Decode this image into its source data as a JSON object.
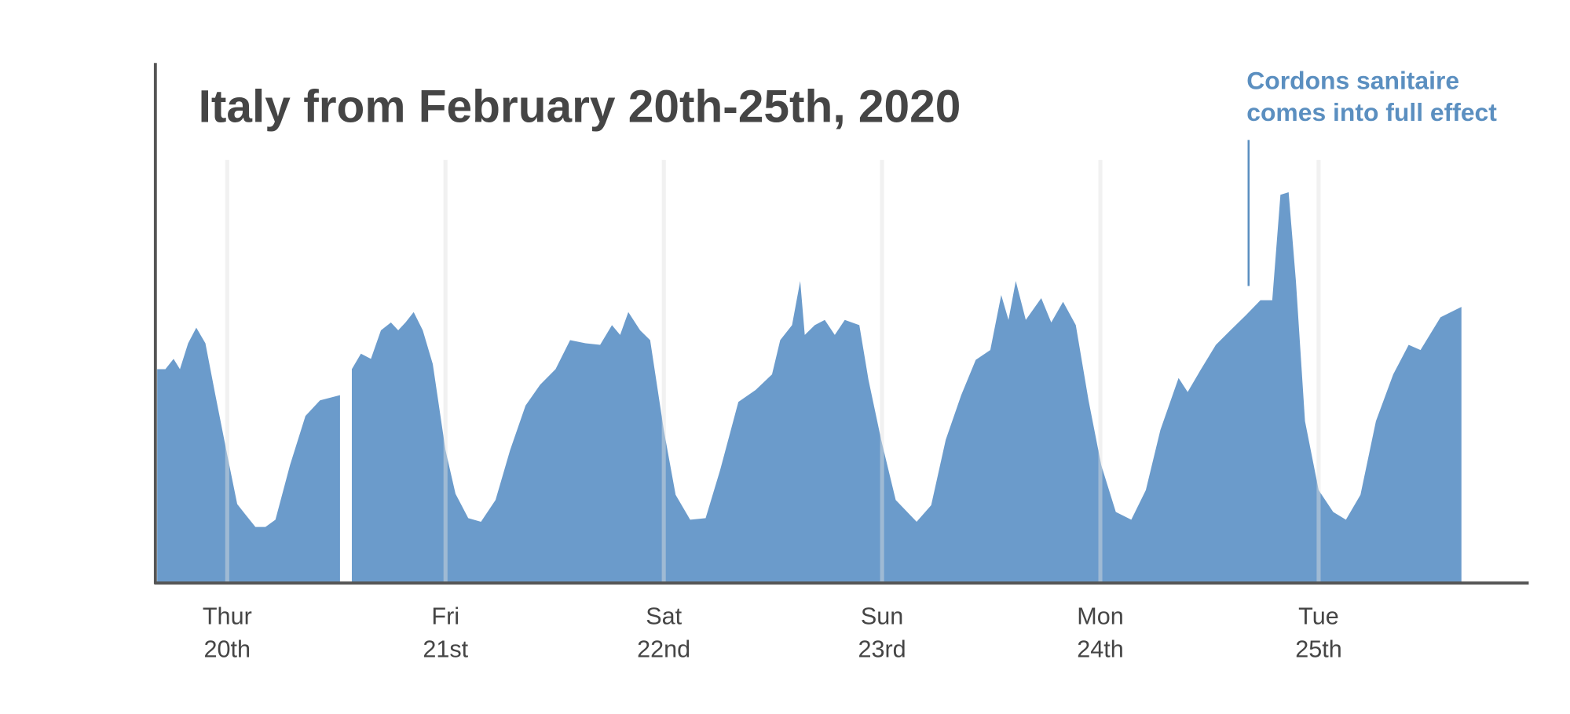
{
  "chart_data": {
    "type": "area",
    "title": "Italy from February 20th-25th, 2020",
    "color": "#6b9bcb",
    "grid": true,
    "xlim": [
      -7.9,
      143.1
    ],
    "ylim": [
      0,
      100
    ],
    "xticks": [
      {
        "value": 0,
        "label": [
          "Thur",
          "20th"
        ]
      },
      {
        "value": 24,
        "label": [
          "Fri",
          "21st"
        ]
      },
      {
        "value": 48,
        "label": [
          "Sat",
          "22nd"
        ]
      },
      {
        "value": 72,
        "label": [
          "Sun",
          "23rd"
        ]
      },
      {
        "value": 96,
        "label": [
          "Mon",
          "24th"
        ]
      },
      {
        "value": 120,
        "label": [
          "Tue",
          "25th"
        ]
      }
    ],
    "x": [
      -7.7,
      -6.8,
      -5.9,
      -5.2,
      -4.3,
      -3.4,
      -2.4,
      -1.3,
      0,
      1.1,
      2.0,
      3.1,
      4.2,
      5.3,
      6.9,
      8.6,
      10.2,
      12.4,
      13.0,
      13.7,
      14.7,
      15.8,
      16.9,
      18.0,
      18.8,
      19.6,
      20.5,
      21.5,
      22.6,
      24.0,
      25.1,
      26.5,
      27.9,
      29.5,
      31.1,
      32.8,
      34.4,
      36.1,
      37.7,
      39.4,
      41.0,
      42.3,
      43.2,
      44.1,
      45.4,
      46.5,
      48.0,
      49.3,
      50.9,
      52.6,
      54.2,
      56.2,
      58.1,
      59.9,
      60.8,
      62.1,
      63.0,
      63.5,
      64.6,
      65.7,
      66.8,
      67.9,
      69.5,
      70.5,
      71.9,
      73.5,
      75.8,
      77.4,
      79.0,
      80.7,
      82.3,
      83.9,
      85.1,
      85.9,
      86.7,
      87.8,
      89.5,
      90.6,
      91.9,
      93.3,
      94.7,
      96.1,
      97.7,
      99.4,
      101.0,
      102.6,
      104.6,
      105.6,
      107.0,
      108.7,
      110.3,
      112.0,
      113.6,
      114.9,
      115.8,
      116.7,
      117.5,
      118.5,
      120.0,
      121.6,
      123.0,
      124.6,
      126.3,
      128.2,
      129.9,
      131.2,
      133.4,
      135.7
    ],
    "values": [
      41,
      41,
      43,
      41,
      46,
      49,
      46,
      36,
      24.5,
      15,
      13,
      10.6,
      10.6,
      12,
      22.5,
      32,
      35,
      36,
      null,
      41,
      44,
      43,
      48.5,
      50,
      48.5,
      50,
      52,
      48.5,
      42,
      25.4,
      17,
      12.3,
      11.6,
      15.8,
      25.4,
      34,
      38,
      41,
      46.6,
      46,
      45.7,
      49.5,
      47.6,
      52,
      48.5,
      46.6,
      29.3,
      16.8,
      12,
      12.3,
      21.6,
      34.7,
      37,
      40,
      46.6,
      49.5,
      58,
      47.6,
      49.5,
      50.5,
      47.6,
      50.5,
      49.5,
      39,
      27.4,
      15.8,
      11.6,
      14.8,
      27.4,
      36,
      42.8,
      44.7,
      55.3,
      50.5,
      58,
      50.5,
      54.7,
      50,
      54,
      49.5,
      35,
      22.5,
      13.5,
      12,
      17.7,
      29.3,
      39.3,
      36.6,
      40.8,
      45.7,
      48.5,
      51.4,
      54.3,
      54.3,
      74.6,
      75.1,
      58,
      31,
      17.7,
      13.5,
      12,
      16.8,
      31,
      40,
      45.7,
      44.7,
      51,
      53
    ],
    "annotation": {
      "text": [
        "Cordons sanitaire",
        "comes into full effect"
      ],
      "x": 112.3
    }
  }
}
